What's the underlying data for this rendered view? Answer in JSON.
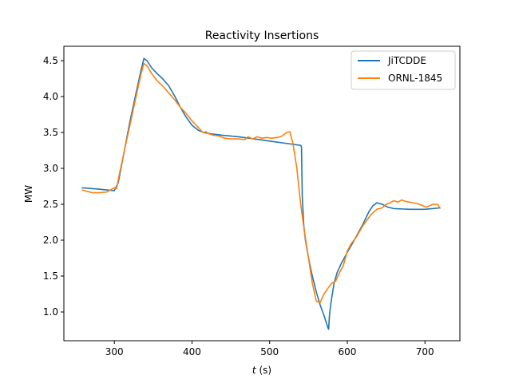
{
  "chart_data": {
    "type": "line",
    "title": "Reactivity Insertions",
    "xlabel_var": "t",
    "xlabel_unit": " (s)",
    "ylabel": "MW",
    "xlim": [
      235,
      745
    ],
    "ylim": [
      0.6,
      4.7
    ],
    "xticks": [
      300,
      400,
      500,
      600,
      700
    ],
    "yticks": [
      1.0,
      1.5,
      2.0,
      2.5,
      3.0,
      3.5,
      4.0,
      4.5
    ],
    "grid": false,
    "legend_position": "top-right",
    "series": [
      {
        "name": "JiTCDDE",
        "color": "#1f77b4",
        "points": [
          [
            258,
            2.73
          ],
          [
            280,
            2.71
          ],
          [
            300,
            2.69
          ],
          [
            305,
            2.8
          ],
          [
            312,
            3.2
          ],
          [
            320,
            3.65
          ],
          [
            328,
            4.05
          ],
          [
            334,
            4.35
          ],
          [
            338,
            4.53
          ],
          [
            342,
            4.5
          ],
          [
            348,
            4.4
          ],
          [
            355,
            4.32
          ],
          [
            362,
            4.25
          ],
          [
            370,
            4.15
          ],
          [
            378,
            4.0
          ],
          [
            385,
            3.85
          ],
          [
            392,
            3.72
          ],
          [
            400,
            3.6
          ],
          [
            408,
            3.53
          ],
          [
            415,
            3.5
          ],
          [
            425,
            3.48
          ],
          [
            440,
            3.46
          ],
          [
            460,
            3.44
          ],
          [
            480,
            3.41
          ],
          [
            500,
            3.38
          ],
          [
            520,
            3.35
          ],
          [
            540,
            3.32
          ],
          [
            541,
            3.3
          ],
          [
            542,
            2.6
          ],
          [
            544,
            2.2
          ],
          [
            546,
            2.0
          ],
          [
            550,
            1.75
          ],
          [
            555,
            1.5
          ],
          [
            560,
            1.28
          ],
          [
            565,
            1.1
          ],
          [
            570,
            0.95
          ],
          [
            575,
            0.78
          ],
          [
            576,
            0.76
          ],
          [
            577,
            0.95
          ],
          [
            578,
            1.05
          ],
          [
            580,
            1.2
          ],
          [
            583,
            1.4
          ],
          [
            587,
            1.55
          ],
          [
            592,
            1.67
          ],
          [
            600,
            1.83
          ],
          [
            610,
            2.02
          ],
          [
            620,
            2.22
          ],
          [
            628,
            2.4
          ],
          [
            633,
            2.48
          ],
          [
            638,
            2.52
          ],
          [
            645,
            2.5
          ],
          [
            652,
            2.46
          ],
          [
            660,
            2.44
          ],
          [
            680,
            2.43
          ],
          [
            700,
            2.43
          ],
          [
            720,
            2.45
          ]
        ]
      },
      {
        "name": "ORNL-1845",
        "color": "#ff7f0e",
        "points": [
          [
            258,
            2.7
          ],
          [
            265,
            2.68
          ],
          [
            272,
            2.66
          ],
          [
            280,
            2.66
          ],
          [
            290,
            2.67
          ],
          [
            295,
            2.7
          ],
          [
            300,
            2.73
          ],
          [
            303,
            2.72
          ],
          [
            306,
            2.9
          ],
          [
            312,
            3.2
          ],
          [
            320,
            3.6
          ],
          [
            328,
            4.0
          ],
          [
            334,
            4.3
          ],
          [
            338,
            4.46
          ],
          [
            342,
            4.43
          ],
          [
            348,
            4.32
          ],
          [
            355,
            4.22
          ],
          [
            362,
            4.15
          ],
          [
            370,
            4.05
          ],
          [
            378,
            3.95
          ],
          [
            385,
            3.85
          ],
          [
            392,
            3.77
          ],
          [
            400,
            3.66
          ],
          [
            408,
            3.57
          ],
          [
            414,
            3.5
          ],
          [
            418,
            3.51
          ],
          [
            422,
            3.48
          ],
          [
            428,
            3.46
          ],
          [
            435,
            3.45
          ],
          [
            442,
            3.42
          ],
          [
            450,
            3.41
          ],
          [
            460,
            3.41
          ],
          [
            468,
            3.4
          ],
          [
            472,
            3.44
          ],
          [
            478,
            3.41
          ],
          [
            484,
            3.44
          ],
          [
            490,
            3.42
          ],
          [
            496,
            3.43
          ],
          [
            502,
            3.42
          ],
          [
            510,
            3.43
          ],
          [
            516,
            3.45
          ],
          [
            522,
            3.5
          ],
          [
            526,
            3.51
          ],
          [
            530,
            3.35
          ],
          [
            535,
            3.0
          ],
          [
            540,
            2.5
          ],
          [
            545,
            2.1
          ],
          [
            550,
            1.75
          ],
          [
            555,
            1.4
          ],
          [
            560,
            1.15
          ],
          [
            565,
            1.13
          ],
          [
            570,
            1.25
          ],
          [
            575,
            1.33
          ],
          [
            580,
            1.4
          ],
          [
            585,
            1.43
          ],
          [
            590,
            1.55
          ],
          [
            595,
            1.65
          ],
          [
            600,
            1.85
          ],
          [
            605,
            1.95
          ],
          [
            612,
            2.05
          ],
          [
            620,
            2.2
          ],
          [
            630,
            2.35
          ],
          [
            638,
            2.43
          ],
          [
            645,
            2.45
          ],
          [
            650,
            2.5
          ],
          [
            655,
            2.52
          ],
          [
            660,
            2.55
          ],
          [
            665,
            2.53
          ],
          [
            670,
            2.56
          ],
          [
            675,
            2.54
          ],
          [
            680,
            2.53
          ],
          [
            690,
            2.51
          ],
          [
            697,
            2.48
          ],
          [
            702,
            2.46
          ],
          [
            710,
            2.5
          ],
          [
            716,
            2.5
          ],
          [
            720,
            2.44
          ]
        ]
      }
    ]
  }
}
